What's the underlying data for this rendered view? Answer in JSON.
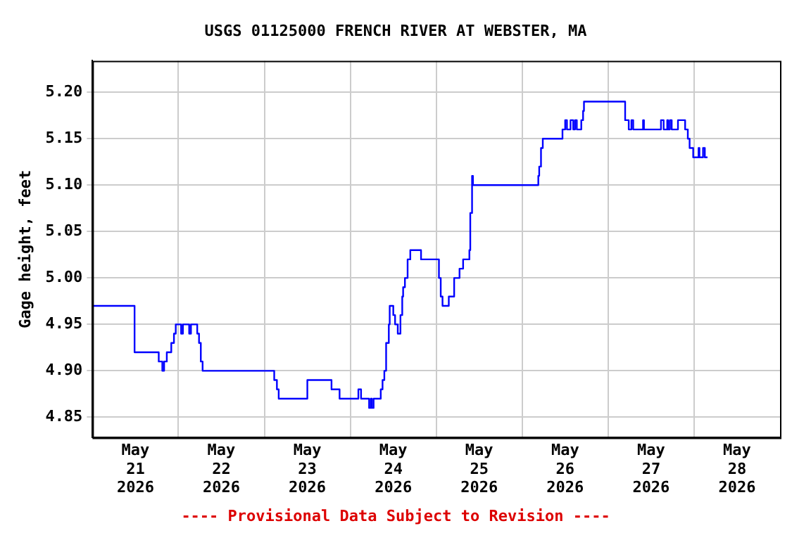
{
  "chart_data": {
    "type": "step",
    "title": "USGS 01125000 FRENCH RIVER AT WEBSTER, MA",
    "ylabel": "Gage height, feet",
    "annotations": [
      "---- Provisional Data Subject to Revision ----"
    ],
    "x": [
      "2026-05-20T12:00",
      "2026-05-20T23:00",
      "2026-05-20T23:45",
      "2026-05-21T06:30",
      "2026-05-21T07:30",
      "2026-05-21T08:00",
      "2026-05-21T08:45",
      "2026-05-21T10:00",
      "2026-05-21T10:45",
      "2026-05-21T11:15",
      "2026-05-21T12:45",
      "2026-05-21T13:15",
      "2026-05-21T15:00",
      "2026-05-21T15:30",
      "2026-05-21T17:15",
      "2026-05-21T17:45",
      "2026-05-21T18:15",
      "2026-05-21T18:45",
      "2026-05-22T14:45",
      "2026-05-22T15:30",
      "2026-05-22T16:00",
      "2026-05-23T00:00",
      "2026-05-23T06:45",
      "2026-05-23T09:00",
      "2026-05-23T14:15",
      "2026-05-23T15:00",
      "2026-05-23T17:15",
      "2026-05-23T17:45",
      "2026-05-23T18:00",
      "2026-05-23T18:30",
      "2026-05-23T20:30",
      "2026-05-23T21:00",
      "2026-05-23T21:30",
      "2026-05-23T22:00",
      "2026-05-23T22:45",
      "2026-05-23T23:00",
      "2026-05-24T00:00",
      "2026-05-24T00:30",
      "2026-05-24T01:15",
      "2026-05-24T02:00",
      "2026-05-24T02:30",
      "2026-05-24T02:45",
      "2026-05-24T03:15",
      "2026-05-24T04:00",
      "2026-05-24T04:45",
      "2026-05-24T07:45",
      "2026-05-24T12:45",
      "2026-05-24T13:15",
      "2026-05-24T13:45",
      "2026-05-24T15:30",
      "2026-05-24T17:00",
      "2026-05-24T18:30",
      "2026-05-24T19:30",
      "2026-05-24T21:15",
      "2026-05-24T21:30",
      "2026-05-24T22:00",
      "2026-05-24T22:15",
      "2026-05-25T16:30",
      "2026-05-25T16:45",
      "2026-05-25T17:15",
      "2026-05-25T17:45",
      "2026-05-25T23:15",
      "2026-05-26T00:00",
      "2026-05-26T00:30",
      "2026-05-26T01:30",
      "2026-05-26T02:15",
      "2026-05-26T02:45",
      "2026-05-26T03:15",
      "2026-05-26T04:30",
      "2026-05-26T05:00",
      "2026-05-26T05:15",
      "2026-05-26T16:45",
      "2026-05-26T17:45",
      "2026-05-26T18:30",
      "2026-05-26T19:00",
      "2026-05-26T21:45",
      "2026-05-26T22:00",
      "2026-05-27T02:45",
      "2026-05-27T03:30",
      "2026-05-27T04:30",
      "2026-05-27T04:45",
      "2026-05-27T05:15",
      "2026-05-27T05:45",
      "2026-05-27T07:30",
      "2026-05-27T09:30",
      "2026-05-27T10:15",
      "2026-05-27T10:45",
      "2026-05-27T11:45",
      "2026-05-27T13:15",
      "2026-05-27T13:30",
      "2026-05-27T14:30",
      "2026-05-27T15:00",
      "2026-05-27T15:45"
    ],
    "series": [
      {
        "color": "#0000ff",
        "values": [
          4.97,
          4.97,
          4.92,
          4.91,
          4.9,
          4.91,
          4.92,
          4.93,
          4.94,
          4.95,
          4.94,
          4.95,
          4.94,
          4.95,
          4.94,
          4.93,
          4.91,
          4.9,
          4.89,
          4.88,
          4.87,
          4.89,
          4.88,
          4.87,
          4.88,
          4.87,
          4.86,
          4.87,
          4.86,
          4.87,
          4.88,
          4.89,
          4.9,
          4.93,
          4.95,
          4.97,
          4.96,
          4.95,
          4.94,
          4.96,
          4.98,
          4.99,
          5.0,
          5.02,
          5.03,
          5.02,
          5.0,
          4.98,
          4.97,
          4.98,
          5.0,
          5.01,
          5.02,
          5.03,
          5.07,
          5.11,
          5.1,
          5.11,
          5.12,
          5.14,
          5.15,
          5.16,
          5.17,
          5.16,
          5.17,
          5.16,
          5.17,
          5.16,
          5.17,
          5.18,
          5.19,
          5.17,
          5.16,
          5.17,
          5.16,
          5.17,
          5.16,
          5.17,
          5.16,
          5.17,
          5.16,
          5.17,
          5.16,
          5.17,
          5.16,
          5.15,
          5.14,
          5.13,
          5.14,
          5.13,
          5.14,
          5.13,
          5.13
        ]
      }
    ],
    "xlim": [
      "2026-05-20T12:00",
      "2026-05-28T12:00"
    ],
    "xticks": [
      {
        "value": "2026-05-21T00:00",
        "label": "May\n21\n2026"
      },
      {
        "value": "2026-05-21T12:00",
        "label": null
      },
      {
        "value": "2026-05-22T00:00",
        "label": "May\n22\n2026"
      },
      {
        "value": "2026-05-22T12:00",
        "label": null
      },
      {
        "value": "2026-05-23T00:00",
        "label": "May\n23\n2026"
      },
      {
        "value": "2026-05-23T12:00",
        "label": null
      },
      {
        "value": "2026-05-24T00:00",
        "label": "May\n24\n2026"
      },
      {
        "value": "2026-05-24T12:00",
        "label": null
      },
      {
        "value": "2026-05-25T00:00",
        "label": "May\n25\n2026"
      },
      {
        "value": "2026-05-25T12:00",
        "label": null
      },
      {
        "value": "2026-05-26T00:00",
        "label": "May\n26\n2026"
      },
      {
        "value": "2026-05-26T12:00",
        "label": null
      },
      {
        "value": "2026-05-27T00:00",
        "label": "May\n27\n2026"
      },
      {
        "value": "2026-05-27T12:00",
        "label": null
      },
      {
        "value": "2026-05-28T00:00",
        "label": "May\n28\n2026"
      }
    ],
    "ylim": [
      4.828,
      5.234
    ],
    "yticks": [
      {
        "value": 4.85,
        "label": "4.85"
      },
      {
        "value": 4.9,
        "label": "4.90"
      },
      {
        "value": 4.95,
        "label": "4.95"
      },
      {
        "value": 5.0,
        "label": "5.00"
      },
      {
        "value": 5.05,
        "label": "5.05"
      },
      {
        "value": 5.1,
        "label": "5.10"
      },
      {
        "value": 5.15,
        "label": "5.15"
      },
      {
        "value": 5.2,
        "label": "5.20"
      }
    ],
    "grid": true,
    "legend": false,
    "marker": "none",
    "line_style": "solid"
  }
}
